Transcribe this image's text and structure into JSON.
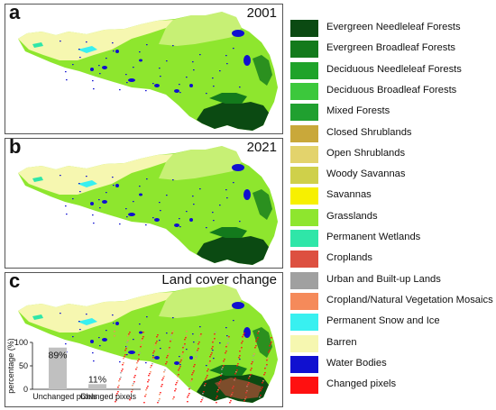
{
  "panels": [
    {
      "letter": "a",
      "title": "2001"
    },
    {
      "letter": "b",
      "title": "2021"
    },
    {
      "letter": "c",
      "title": "Land cover change"
    }
  ],
  "legend": [
    {
      "label": "Evergreen Needleleaf Forests",
      "color": "#0b4a12"
    },
    {
      "label": "Evergreen Broadleaf Forests",
      "color": "#137a1c"
    },
    {
      "label": "Deciduous Needleleaf Forests",
      "color": "#1fa32a"
    },
    {
      "label": "Deciduous Broadleaf Forests",
      "color": "#3cc83c"
    },
    {
      "label": "Mixed Forests",
      "color": "#20a030"
    },
    {
      "label": "Closed Shrublands",
      "color": "#c9a83a"
    },
    {
      "label": "Open Shrublands",
      "color": "#e3d36c"
    },
    {
      "label": "Woody Savannas",
      "color": "#cfd04a"
    },
    {
      "label": "Savannas",
      "color": "#f7f000"
    },
    {
      "label": "Grasslands",
      "color": "#8ee62e"
    },
    {
      "label": "Permanent Wetlands",
      "color": "#2fe6a8"
    },
    {
      "label": "Croplands",
      "color": "#dd5040"
    },
    {
      "label": "Urban and Built-up Lands",
      "color": "#a0a0a0"
    },
    {
      "label": "Cropland/Natural Vegetation Mosaics",
      "color": "#f58a5a"
    },
    {
      "label": "Permanent Snow and Ice",
      "color": "#38f0f0"
    },
    {
      "label": "Barren",
      "color": "#f6f7b0"
    },
    {
      "label": "Water Bodies",
      "color": "#1010d0"
    },
    {
      "label": "Changed pixels",
      "color": "#ff1010"
    }
  ],
  "chart_data": {
    "type": "bar",
    "categories": [
      "Unchanged pixels",
      "Changed pixels"
    ],
    "values": [
      89,
      11
    ],
    "data_labels": [
      "89%",
      "11%"
    ],
    "ylabel": "percentage (%)",
    "ylim": [
      0,
      100
    ],
    "bar_color": "#c0c0c0"
  }
}
